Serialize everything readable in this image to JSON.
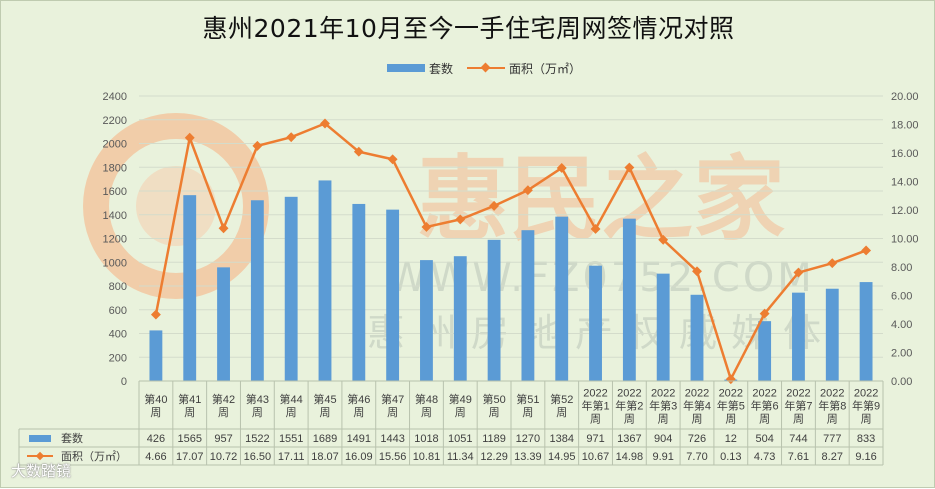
{
  "chart_data": {
    "type": "bar+line",
    "title": "惠州2021年10月至今一手住宅周网签情况对照",
    "categories": [
      [
        "第40",
        "周"
      ],
      [
        "第41",
        "周"
      ],
      [
        "第42",
        "周"
      ],
      [
        "第43",
        "周"
      ],
      [
        "第44",
        "周"
      ],
      [
        "第45",
        "周"
      ],
      [
        "第46",
        "周"
      ],
      [
        "第47",
        "周"
      ],
      [
        "第48",
        "周"
      ],
      [
        "第49",
        "周"
      ],
      [
        "第50",
        "周"
      ],
      [
        "第51",
        "周"
      ],
      [
        "第52",
        "周"
      ],
      [
        "2022",
        "年第1",
        "周"
      ],
      [
        "2022",
        "年第2",
        "周"
      ],
      [
        "2022",
        "年第3",
        "周"
      ],
      [
        "2022",
        "年第4",
        "周"
      ],
      [
        "2022",
        "年第5",
        "周"
      ],
      [
        "2022",
        "年第6",
        "周"
      ],
      [
        "2022",
        "年第7",
        "周"
      ],
      [
        "2022",
        "年第8",
        "周"
      ],
      [
        "2022",
        "年第9",
        "周"
      ]
    ],
    "series": [
      {
        "name": "套数",
        "type": "bar",
        "axis": "left",
        "color": "#5b9bd5",
        "values": [
          426,
          1565,
          957,
          1522,
          1551,
          1689,
          1491,
          1443,
          1018,
          1051,
          1189,
          1270,
          1384,
          971,
          1367,
          904,
          726,
          12,
          504,
          744,
          777,
          833
        ]
      },
      {
        "name": "面积（万㎡）",
        "type": "line",
        "axis": "right",
        "color": "#ed7d31",
        "values": [
          4.66,
          17.07,
          10.72,
          16.5,
          17.11,
          18.07,
          16.09,
          15.56,
          10.81,
          11.34,
          12.29,
          13.39,
          14.95,
          10.67,
          14.98,
          9.91,
          7.7,
          0.13,
          4.73,
          7.61,
          8.27,
          9.16
        ]
      }
    ],
    "ylim_left": [
      0,
      2400
    ],
    "yticks_left": [
      "0",
      "200",
      "400",
      "600",
      "800",
      "1000",
      "1200",
      "1400",
      "1600",
      "1800",
      "2000",
      "2200",
      "2400"
    ],
    "ylim_right": [
      0,
      20
    ],
    "yticks_right": [
      "0.00",
      "2.00",
      "4.00",
      "6.00",
      "8.00",
      "10.00",
      "12.00",
      "14.00",
      "16.00",
      "18.00",
      "20.00"
    ],
    "legend_position": "top",
    "data_table": true,
    "grid": "horizontal"
  },
  "watermark": {
    "brand": "惠民之家",
    "url": "WWW.FZ0752.COM",
    "tagline": "惠州房地产权威媒体"
  },
  "footer": {
    "logo_text": "大数踏镜"
  }
}
